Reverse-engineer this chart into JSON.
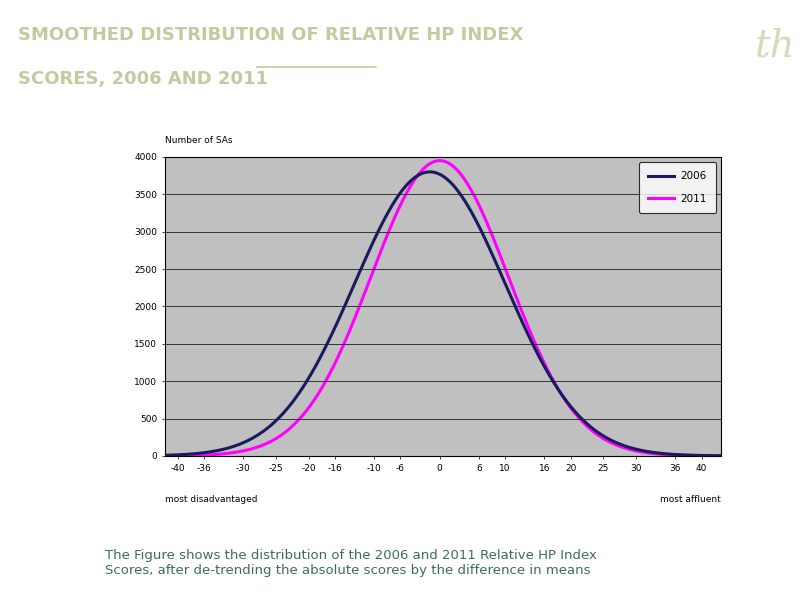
{
  "title_line1": "SMOOTHED DISTRIBUTION OF RELATIVE HP INDEX",
  "title_line2": "SCORES, 2006 AND 2011",
  "header_bg_color": "#3d6b5e",
  "header_text_color": "#c8c8a0",
  "chart_bg_color": "#c0c0c0",
  "chart_border_color": "#000000",
  "outer_bg_color": "#ffffff",
  "ylabel": "Number of SAs",
  "xlabel_left": "most disadvantaged",
  "xlabel_right": "most affluent",
  "xticks": [
    -40,
    -36,
    -30,
    -25,
    -20,
    -16,
    -10,
    -6,
    0,
    6,
    10,
    16,
    20,
    25,
    30,
    36,
    40
  ],
  "yticks": [
    0,
    500,
    1000,
    1500,
    2000,
    2500,
    3000,
    3500,
    4000
  ],
  "ylim": [
    0,
    4000
  ],
  "xlim": [
    -42,
    43
  ],
  "curve_2006_color": "#1a1a5e",
  "curve_2011_color": "#ff00ff",
  "curve_2006_mean": -1.5,
  "curve_2006_std": 11.5,
  "curve_2006_peak": 3800,
  "curve_2011_mean": 0,
  "curve_2011_std": 10.5,
  "curve_2011_peak": 3950,
  "legend_2006": "2006",
  "legend_2011": "2011",
  "legend_color_2006": "#1a1a5e",
  "legend_color_2011": "#ff00ff",
  "curve_linewidth": 2.2,
  "footer_text": "The Figure shows the distribution of the 2006 and 2011 Relative HP Index\nScores, after de-trending the absolute scores by the difference in means",
  "footer_color": "#3d6b5e",
  "bg_color": "#ffffff",
  "logo_color": "#c8c8a0"
}
